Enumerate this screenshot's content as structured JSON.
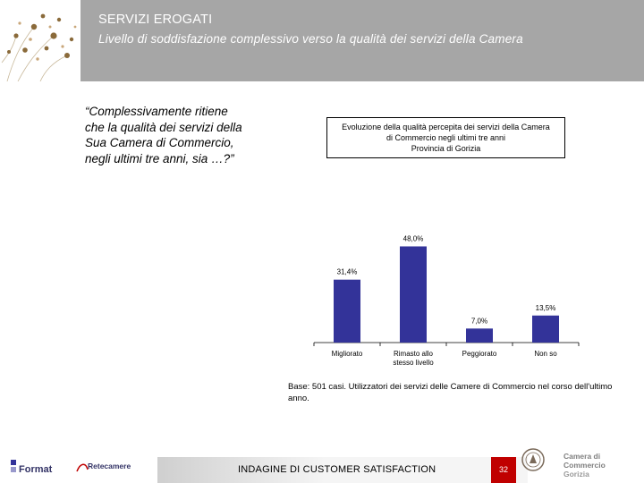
{
  "header": {
    "title": "SERVIZI EROGATI",
    "subtitle": "Livello di soddisfazione complessivo verso la qualità dei servizi della Camera"
  },
  "question": "“Complessivamente ritiene che la qualità dei servizi della Sua Camera di Commercio, negli ultimi tre anni, sia …?”",
  "chart_data": {
    "type": "bar",
    "title_lines": [
      "Evoluzione della qualità percepita dei servizi della Camera",
      "di Commercio negli ultimi tre anni",
      "Provincia di Gorizia"
    ],
    "categories": [
      [
        "Migliorato"
      ],
      [
        "Rimasto allo",
        "stesso livello"
      ],
      [
        "Peggiorato"
      ],
      [
        "Non so"
      ]
    ],
    "values": [
      31.4,
      48.0,
      7.0,
      13.5
    ],
    "value_labels": [
      "31,4%",
      "48,0%",
      "7,0%",
      "13,5%"
    ],
    "ylim": [
      0,
      50
    ],
    "bar_color": "#333399",
    "grid": false,
    "legend": "none"
  },
  "base_note": "Base: 501 casi. Utilizzatori dei servizi delle Camere di Commercio nel corso dell'ultimo anno.",
  "footer": {
    "format_logo": "Format",
    "retecamere_logo": "Retecamere",
    "survey_title": "INDAGINE DI CUSTOMER SATISFACTION",
    "page_number": "32",
    "cciaa_line1": "Camera di Commercio",
    "cciaa_line2": "Gorizia"
  }
}
